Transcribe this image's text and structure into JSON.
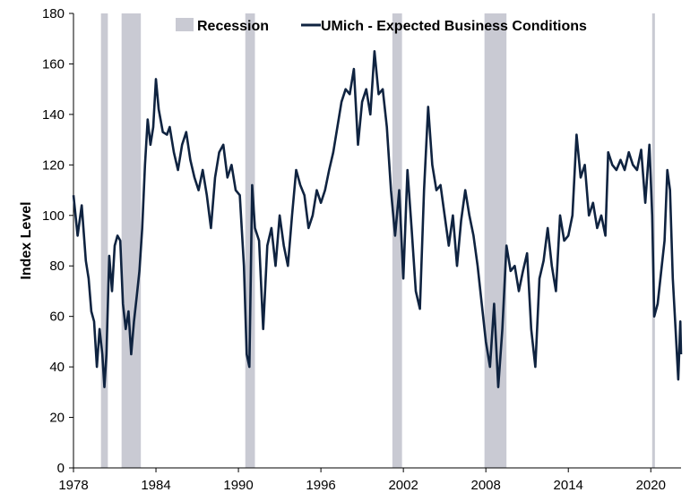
{
  "chart_data": {
    "type": "line",
    "title": "",
    "xlabel": "",
    "ylabel": "Index Level",
    "xlim": [
      1978,
      2022.2
    ],
    "ylim": [
      0,
      180
    ],
    "x_ticks": [
      "1978",
      "1984",
      "1990",
      "1996",
      "2002",
      "2008",
      "2014",
      "2020"
    ],
    "x_tick_values": [
      1978,
      1984,
      1990,
      1996,
      2002,
      2008,
      2014,
      2020
    ],
    "y_ticks": [
      "0",
      "20",
      "40",
      "60",
      "80",
      "100",
      "120",
      "140",
      "160",
      "180"
    ],
    "y_tick_values": [
      0,
      20,
      40,
      60,
      80,
      100,
      120,
      140,
      160,
      180
    ],
    "grid": false,
    "legend_position": "top",
    "legend": [
      "Recession",
      "UMich - Expected Business Conditions"
    ],
    "colors": {
      "recession": "#c9cad3",
      "line": "#0f2340"
    },
    "recessions": [
      [
        1980.0,
        1980.5
      ],
      [
        1981.5,
        1982.9
      ],
      [
        1990.5,
        1991.2
      ],
      [
        2001.2,
        2001.9
      ],
      [
        2007.9,
        2009.5
      ],
      [
        2020.1,
        2020.3
      ]
    ],
    "series": [
      {
        "name": "UMich - Expected Business Conditions",
        "points": [
          [
            1978.0,
            108
          ],
          [
            1978.3,
            92
          ],
          [
            1978.6,
            104
          ],
          [
            1978.9,
            82
          ],
          [
            1979.1,
            75
          ],
          [
            1979.3,
            62
          ],
          [
            1979.5,
            58
          ],
          [
            1979.7,
            40
          ],
          [
            1979.9,
            55
          ],
          [
            1980.1,
            45
          ],
          [
            1980.25,
            32
          ],
          [
            1980.4,
            45
          ],
          [
            1980.6,
            84
          ],
          [
            1980.8,
            70
          ],
          [
            1981.0,
            88
          ],
          [
            1981.2,
            92
          ],
          [
            1981.4,
            90
          ],
          [
            1981.6,
            65
          ],
          [
            1981.8,
            55
          ],
          [
            1982.0,
            62
          ],
          [
            1982.2,
            45
          ],
          [
            1982.4,
            58
          ],
          [
            1982.6,
            68
          ],
          [
            1982.8,
            78
          ],
          [
            1983.0,
            95
          ],
          [
            1983.2,
            120
          ],
          [
            1983.4,
            138
          ],
          [
            1983.6,
            128
          ],
          [
            1983.8,
            135
          ],
          [
            1984.0,
            154
          ],
          [
            1984.2,
            142
          ],
          [
            1984.5,
            133
          ],
          [
            1984.8,
            132
          ],
          [
            1985.0,
            135
          ],
          [
            1985.3,
            125
          ],
          [
            1985.6,
            118
          ],
          [
            1985.9,
            128
          ],
          [
            1986.2,
            133
          ],
          [
            1986.5,
            122
          ],
          [
            1986.8,
            115
          ],
          [
            1987.1,
            110
          ],
          [
            1987.4,
            118
          ],
          [
            1987.7,
            108
          ],
          [
            1988.0,
            95
          ],
          [
            1988.3,
            115
          ],
          [
            1988.6,
            125
          ],
          [
            1988.9,
            128
          ],
          [
            1989.2,
            115
          ],
          [
            1989.5,
            120
          ],
          [
            1989.8,
            110
          ],
          [
            1990.1,
            108
          ],
          [
            1990.4,
            80
          ],
          [
            1990.6,
            45
          ],
          [
            1990.8,
            40
          ],
          [
            1991.0,
            112
          ],
          [
            1991.2,
            95
          ],
          [
            1991.5,
            90
          ],
          [
            1991.8,
            55
          ],
          [
            1992.1,
            88
          ],
          [
            1992.4,
            95
          ],
          [
            1992.7,
            80
          ],
          [
            1993.0,
            100
          ],
          [
            1993.3,
            88
          ],
          [
            1993.6,
            80
          ],
          [
            1993.9,
            100
          ],
          [
            1994.2,
            118
          ],
          [
            1994.5,
            112
          ],
          [
            1994.8,
            108
          ],
          [
            1995.1,
            95
          ],
          [
            1995.4,
            100
          ],
          [
            1995.7,
            110
          ],
          [
            1996.0,
            105
          ],
          [
            1996.3,
            110
          ],
          [
            1996.6,
            118
          ],
          [
            1996.9,
            125
          ],
          [
            1997.2,
            135
          ],
          [
            1997.5,
            145
          ],
          [
            1997.8,
            150
          ],
          [
            1998.1,
            148
          ],
          [
            1998.4,
            158
          ],
          [
            1998.7,
            128
          ],
          [
            1999.0,
            145
          ],
          [
            1999.3,
            150
          ],
          [
            1999.6,
            140
          ],
          [
            1999.9,
            165
          ],
          [
            2000.2,
            148
          ],
          [
            2000.5,
            150
          ],
          [
            2000.8,
            135
          ],
          [
            2001.1,
            110
          ],
          [
            2001.4,
            92
          ],
          [
            2001.7,
            110
          ],
          [
            2002.0,
            75
          ],
          [
            2002.3,
            118
          ],
          [
            2002.6,
            95
          ],
          [
            2002.9,
            70
          ],
          [
            2003.2,
            63
          ],
          [
            2003.5,
            110
          ],
          [
            2003.8,
            143
          ],
          [
            2004.1,
            120
          ],
          [
            2004.4,
            110
          ],
          [
            2004.7,
            112
          ],
          [
            2005.0,
            100
          ],
          [
            2005.3,
            88
          ],
          [
            2005.6,
            100
          ],
          [
            2005.9,
            80
          ],
          [
            2006.2,
            98
          ],
          [
            2006.5,
            110
          ],
          [
            2006.8,
            100
          ],
          [
            2007.1,
            92
          ],
          [
            2007.4,
            80
          ],
          [
            2007.7,
            65
          ],
          [
            2008.0,
            50
          ],
          [
            2008.3,
            40
          ],
          [
            2008.6,
            65
          ],
          [
            2008.9,
            32
          ],
          [
            2009.2,
            55
          ],
          [
            2009.5,
            88
          ],
          [
            2009.8,
            78
          ],
          [
            2010.1,
            80
          ],
          [
            2010.4,
            70
          ],
          [
            2010.7,
            78
          ],
          [
            2011.0,
            85
          ],
          [
            2011.3,
            55
          ],
          [
            2011.6,
            40
          ],
          [
            2011.9,
            75
          ],
          [
            2012.2,
            82
          ],
          [
            2012.5,
            95
          ],
          [
            2012.8,
            80
          ],
          [
            2013.1,
            70
          ],
          [
            2013.4,
            100
          ],
          [
            2013.7,
            90
          ],
          [
            2014.0,
            92
          ],
          [
            2014.3,
            100
          ],
          [
            2014.6,
            132
          ],
          [
            2014.9,
            115
          ],
          [
            2015.2,
            120
          ],
          [
            2015.5,
            100
          ],
          [
            2015.8,
            105
          ],
          [
            2016.1,
            95
          ],
          [
            2016.4,
            100
          ],
          [
            2016.7,
            92
          ],
          [
            2016.9,
            125
          ],
          [
            2017.2,
            120
          ],
          [
            2017.5,
            118
          ],
          [
            2017.8,
            122
          ],
          [
            2018.1,
            118
          ],
          [
            2018.4,
            125
          ],
          [
            2018.7,
            120
          ],
          [
            2019.0,
            118
          ],
          [
            2019.3,
            126
          ],
          [
            2019.6,
            105
          ],
          [
            2019.9,
            128
          ],
          [
            2020.1,
            100
          ],
          [
            2020.25,
            60
          ],
          [
            2020.5,
            65
          ],
          [
            2020.8,
            80
          ],
          [
            2021.0,
            90
          ],
          [
            2021.2,
            118
          ],
          [
            2021.4,
            110
          ],
          [
            2021.6,
            75
          ],
          [
            2021.8,
            55
          ],
          [
            2022.0,
            35
          ],
          [
            2022.15,
            58
          ],
          [
            2022.2,
            45
          ]
        ]
      }
    ]
  }
}
